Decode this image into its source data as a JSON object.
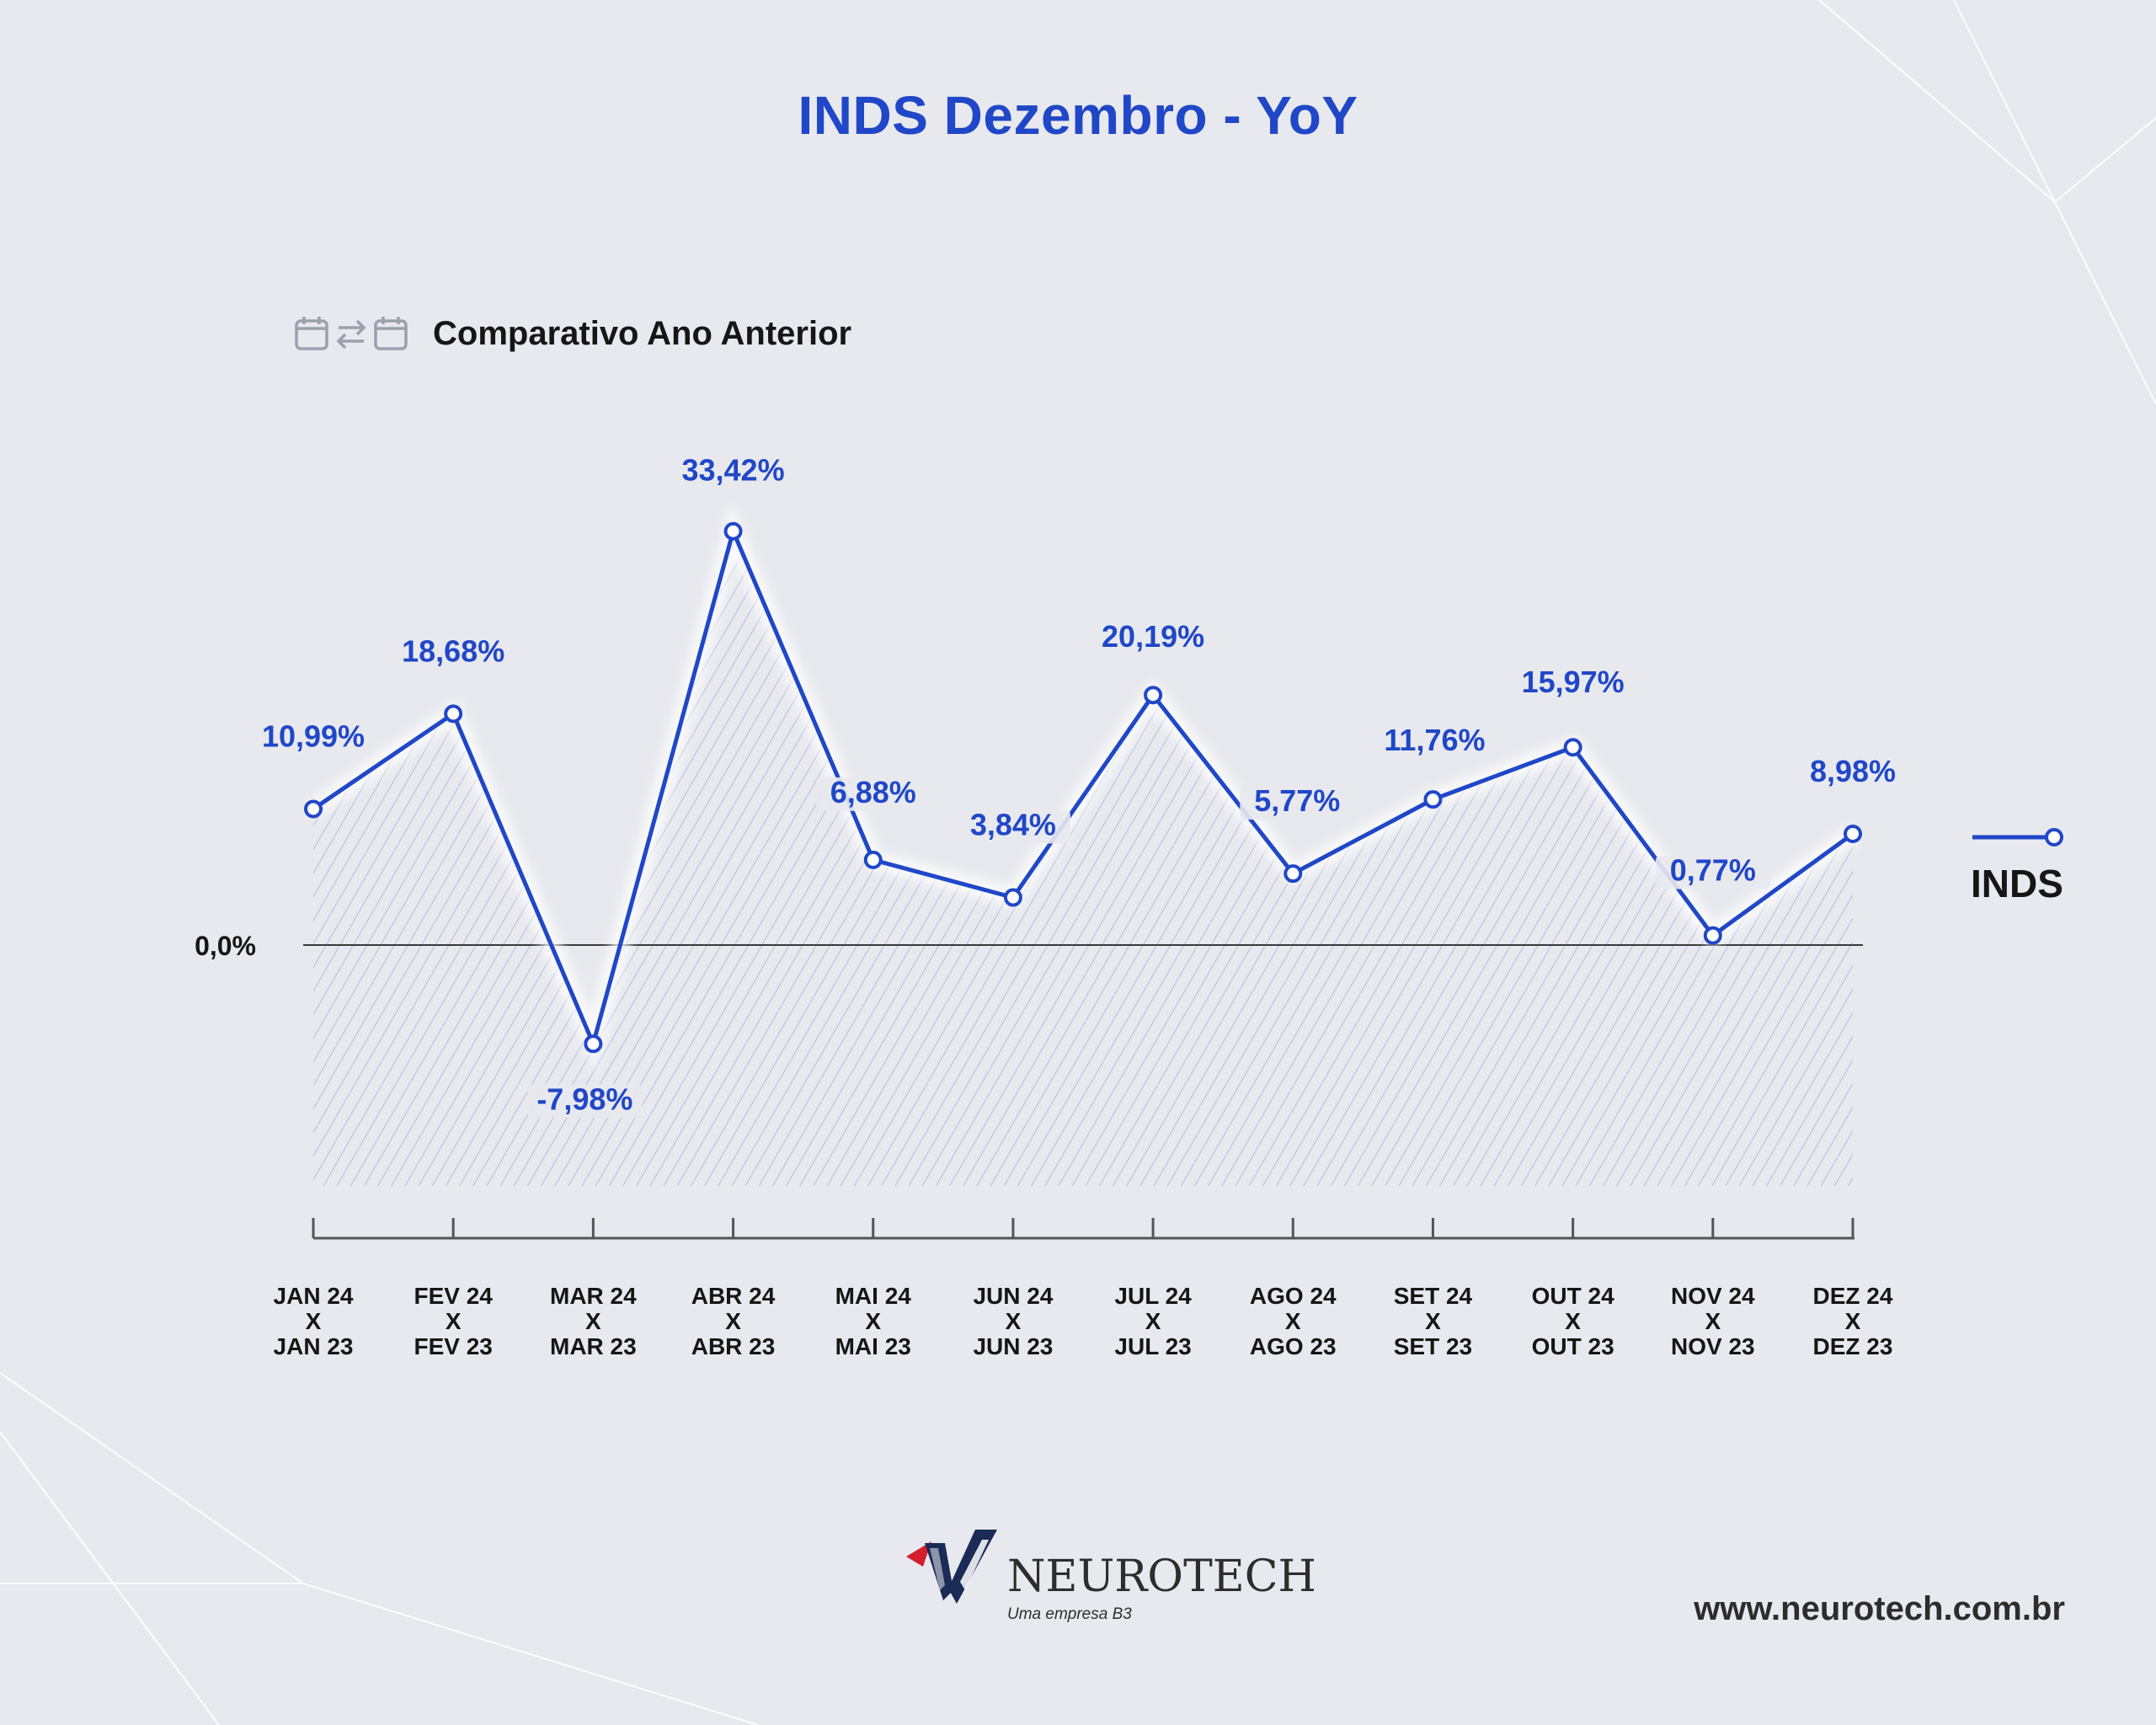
{
  "header": {
    "title": "INDS Dezembro - YoY",
    "subtitle": "Comparativo Ano Anterior",
    "subtitle_icons": [
      "calendar-icon",
      "swap-arrows-icon",
      "calendar-icon"
    ]
  },
  "legend": {
    "label": "INDS"
  },
  "footer": {
    "brand": "NEUROTECH",
    "tagline": "Uma empresa B3",
    "url": "www.neurotech.com.br"
  },
  "colors": {
    "accent": "#1f47c8",
    "text": "#161616",
    "background": "#e8e9ee",
    "logo_red": "#d21f2b",
    "logo_navy": "#1b2b57"
  },
  "chart_data": {
    "type": "line",
    "title": "INDS Dezembro - YoY",
    "subtitle": "Comparativo Ano Anterior",
    "categories": [
      [
        "JAN 24",
        "X",
        "JAN 23"
      ],
      [
        "FEV 24",
        "X",
        "FEV 23"
      ],
      [
        "MAR 24",
        "X",
        "MAR 23"
      ],
      [
        "ABR 24",
        "X",
        "ABR 23"
      ],
      [
        "MAI 24",
        "X",
        "MAI 23"
      ],
      [
        "JUN 24",
        "X",
        "JUN 23"
      ],
      [
        "JUL 24",
        "X",
        "JUL 23"
      ],
      [
        "AGO 24",
        "X",
        "AGO 23"
      ],
      [
        "SET 24",
        "X",
        "SET 23"
      ],
      [
        "OUT 24",
        "X",
        "OUT 23"
      ],
      [
        "NOV 24",
        "X",
        "NOV 23"
      ],
      [
        "DEZ 24",
        "X",
        "DEZ 23"
      ]
    ],
    "series": [
      {
        "name": "INDS",
        "values": [
          10.99,
          18.68,
          -7.98,
          33.42,
          6.88,
          3.84,
          20.19,
          5.77,
          11.76,
          15.97,
          0.77,
          8.98
        ],
        "labels": [
          "10,99%",
          "18,68%",
          "-7,98%",
          "33,42%",
          "6,88%",
          "3,84%",
          "20,19%",
          "5,77%",
          "11,76%",
          "15,97%",
          "0,77%",
          "8,98%"
        ]
      }
    ],
    "zero_line_label": "0,0%",
    "legend_position": "right",
    "grid": false
  }
}
